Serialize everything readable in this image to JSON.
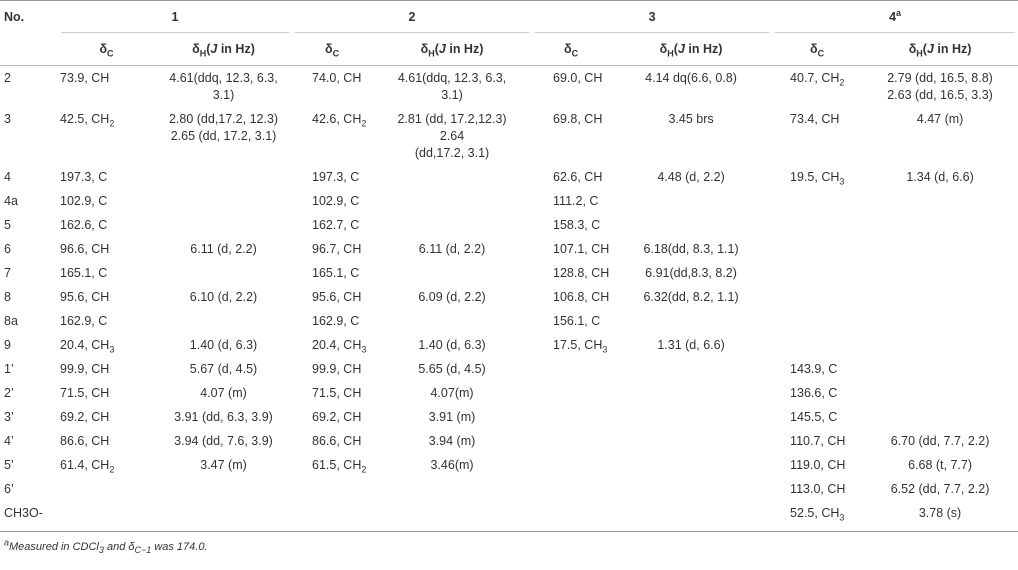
{
  "header": {
    "no": "No.",
    "groups": [
      "1",
      "2",
      "3",
      [
        "4",
        {
          "sup": "a"
        }
      ]
    ],
    "sub": [
      [
        "δ",
        {
          "sub": "C"
        }
      ],
      [
        "δ",
        {
          "sub": "H"
        },
        "(",
        {
          "i": "J"
        },
        " in Hz)"
      ]
    ]
  },
  "table": {
    "rows": [
      [
        "2",
        "73.9, CH",
        {
          "lines": [
            "4.61(ddq, 12.3, 6.3,",
            "3.1)"
          ]
        },
        "74.0, CH",
        {
          "lines": [
            "4.61(ddq, 12.3, 6.3,",
            "3.1)"
          ]
        },
        "69.0, CH",
        "4.14 dq(6.6, 0.8)",
        [
          "40.7, CH",
          {
            "sub": "2"
          }
        ],
        {
          "lines": [
            "2.79 (dd, 16.5, 8.8)",
            "2.63 (dd, 16.5, 3.3)"
          ]
        }
      ],
      [
        "3",
        [
          "42.5, CH",
          {
            "sub": "2"
          }
        ],
        {
          "lines": [
            "2.80 (dd,17.2, 12.3)",
            "2.65 (dd, 17.2, 3.1)"
          ]
        },
        [
          "42.6, CH",
          {
            "sub": "2"
          }
        ],
        {
          "lines": [
            "2.81 (dd, 17.2,12.3)",
            "2.64",
            "(dd,17.2, 3.1)"
          ]
        },
        "69.8, CH",
        "3.45 brs",
        "73.4, CH",
        "4.47 (m)"
      ],
      [
        "4",
        "197.3, C",
        null,
        "197.3, C",
        null,
        "62.6, CH",
        "4.48 (d, 2.2)",
        [
          "19.5, CH",
          {
            "sub": "3"
          }
        ],
        "1.34 (d, 6.6)"
      ],
      [
        "4a",
        "102.9, C",
        null,
        "102.9, C",
        null,
        "111.2, C",
        null,
        null,
        null
      ],
      [
        "5",
        "162.6, C",
        null,
        "162.7, C",
        null,
        "158.3, C",
        null,
        null,
        null
      ],
      [
        "6",
        "96.6, CH",
        "6.11 (d, 2.2)",
        "96.7, CH",
        "6.11 (d, 2.2)",
        "107.1, CH",
        "6.18(dd, 8.3, 1.1)",
        null,
        null
      ],
      [
        "7",
        "165.1, C",
        null,
        "165.1, C",
        null,
        "128.8, CH",
        "6.91(dd,8.3, 8.2)",
        null,
        null
      ],
      [
        "8",
        "95.6, CH",
        "6.10 (d, 2.2)",
        "95.6, CH",
        "6.09 (d, 2.2)",
        "106.8, CH",
        "6.32(dd, 8.2, 1.1)",
        null,
        null
      ],
      [
        "8a",
        "162.9, C",
        null,
        "162.9, C",
        null,
        "156.1, C",
        null,
        null,
        null
      ],
      [
        "9",
        [
          "20.4, CH",
          {
            "sub": "3"
          }
        ],
        "1.40 (d, 6.3)",
        [
          "20.4, CH",
          {
            "sub": "3"
          }
        ],
        "1.40 (d, 6.3)",
        [
          "17.5, CH",
          {
            "sub": "3"
          }
        ],
        "1.31 (d, 6.6)",
        null,
        null
      ],
      [
        "1’",
        "99.9, CH",
        "5.67 (d, 4.5)",
        "99.9, CH",
        "5.65 (d, 4.5)",
        null,
        null,
        "143.9, C",
        null
      ],
      [
        "2’",
        "71.5, CH",
        "4.07 (m)",
        "71.5, CH",
        "4.07(m)",
        null,
        null,
        "136.6, C",
        null
      ],
      [
        "3’",
        "69.2, CH",
        "3.91 (dd, 6.3, 3.9)",
        "69.2, CH",
        "3.91 (m)",
        null,
        null,
        "145.5, C",
        null
      ],
      [
        "4’",
        "86.6, CH",
        "3.94 (dd, 7.6, 3.9)",
        "86.6, CH",
        "3.94 (m)",
        null,
        null,
        "110.7, CH",
        "6.70 (dd, 7.7, 2.2)"
      ],
      [
        "5’",
        [
          "61.4, CH",
          {
            "sub": "2"
          }
        ],
        "3.47 (m)",
        [
          "61.5, CH",
          {
            "sub": "2"
          }
        ],
        "3.46(m)",
        null,
        null,
        "119.0, CH",
        "6.68 (t, 7.7)"
      ],
      [
        "6’",
        null,
        null,
        null,
        null,
        null,
        null,
        "113.0, CH",
        "6.52 (dd, 7.7, 2.2)"
      ],
      [
        "CH3O-",
        null,
        null,
        null,
        null,
        null,
        null,
        [
          "52.5, CH",
          {
            "sub": "3"
          }
        ],
        "3.78 (s)"
      ]
    ]
  },
  "footnote": [
    {
      "sup": "a"
    },
    "Measured in CDCl",
    {
      "sub": "3"
    },
    " and δ",
    {
      "sub": "C−1"
    },
    " was 174.0."
  ]
}
